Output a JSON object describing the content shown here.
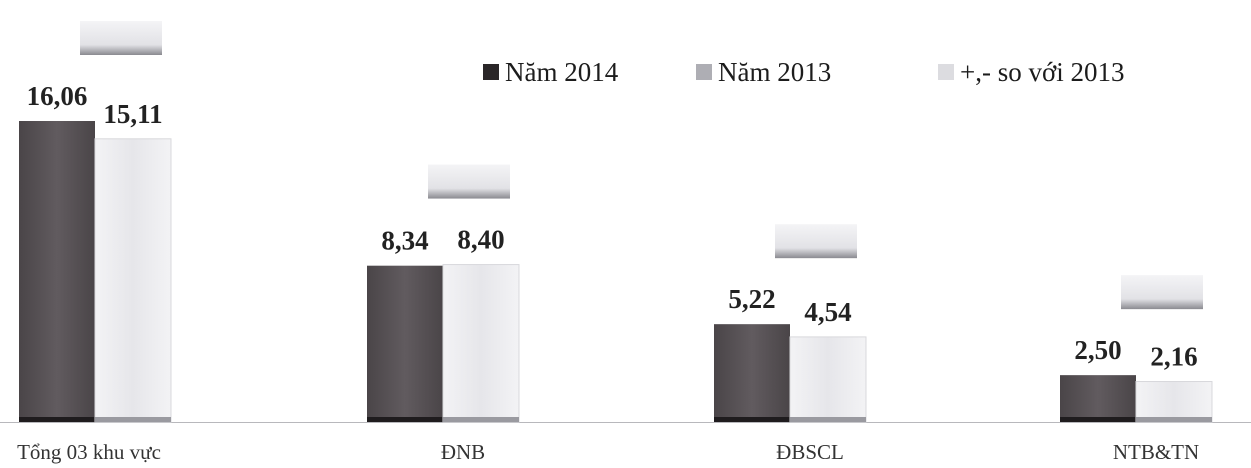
{
  "chart_data": {
    "type": "bar",
    "title": "",
    "xlabel": "",
    "ylabel": "",
    "categories": [
      "Tổng 03 khu vực",
      "ĐNB",
      "ĐBSCL",
      "NTB&TN"
    ],
    "series": [
      {
        "name": "Năm 2014",
        "values": [
          16.06,
          8.34,
          5.22,
          2.5
        ],
        "labels": [
          "16,06",
          "8,34",
          "5,22",
          "2,50"
        ],
        "color": "#5b5659"
      },
      {
        "name": "Năm 2013",
        "values": [
          15.11,
          8.4,
          4.54,
          2.16
        ],
        "labels": [
          "15,11",
          "8,40",
          "4,54",
          "2,16"
        ],
        "color": "#ededf0"
      },
      {
        "name": "+,- so với 2013",
        "values": [
          null,
          null,
          null,
          null
        ],
        "labels": [
          "",
          "",
          "",
          ""
        ],
        "color": "#d9d9dc"
      }
    ],
    "ylim": [
      0,
      16.5
    ],
    "grid": false,
    "legend_position": "top-right"
  }
}
